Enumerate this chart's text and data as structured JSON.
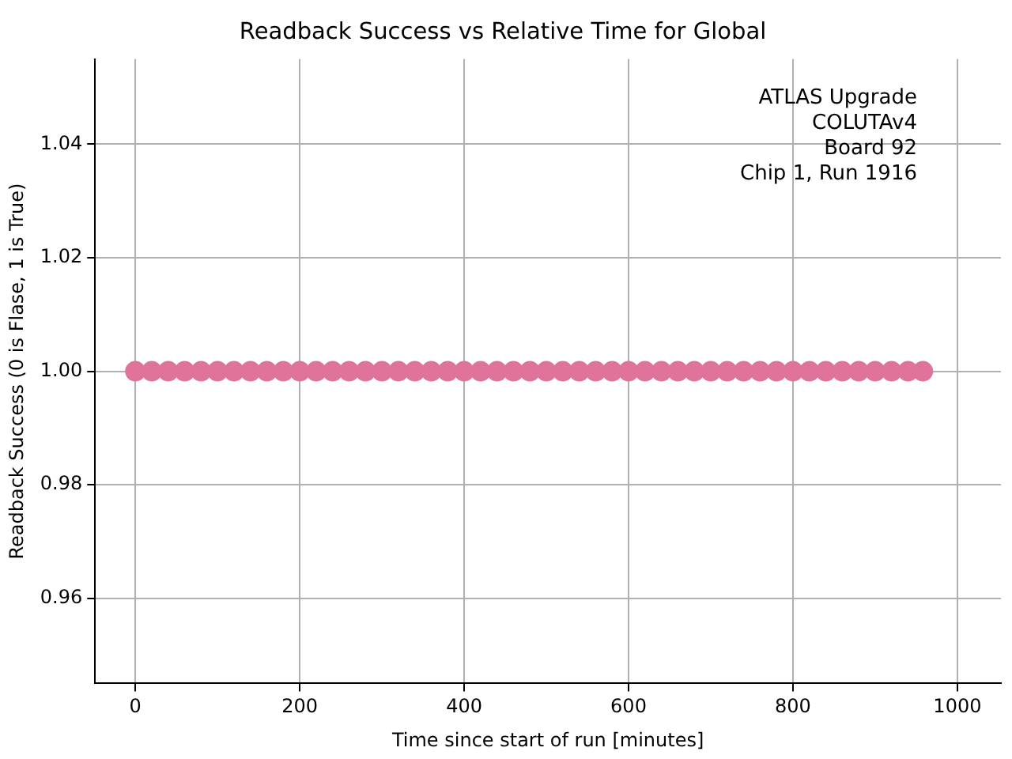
{
  "chart_data": {
    "type": "scatter",
    "title": "Readback Success vs Relative Time for Global",
    "xlabel": "Time since start of run [minutes]",
    "ylabel": "Readback Success (0 is Flase, 1 is True)",
    "annotations": [
      "ATLAS Upgrade\nCOLUTAv4\nBoard 92\nChip 1, Run 1916"
    ],
    "x": [
      0,
      20,
      40,
      60,
      80,
      100,
      120,
      140,
      160,
      180,
      200,
      220,
      240,
      260,
      280,
      300,
      320,
      340,
      360,
      380,
      400,
      420,
      440,
      460,
      480,
      500,
      520,
      540,
      560,
      580,
      600,
      620,
      640,
      660,
      680,
      700,
      720,
      740,
      760,
      780,
      800,
      820,
      840,
      860,
      880,
      900,
      920,
      940,
      958
    ],
    "series": [
      {
        "color": "#e07399",
        "values": [
          1,
          1,
          1,
          1,
          1,
          1,
          1,
          1,
          1,
          1,
          1,
          1,
          1,
          1,
          1,
          1,
          1,
          1,
          1,
          1,
          1,
          1,
          1,
          1,
          1,
          1,
          1,
          1,
          1,
          1,
          1,
          1,
          1,
          1,
          1,
          1,
          1,
          1,
          1,
          1,
          1,
          1,
          1,
          1,
          1,
          1,
          1,
          1,
          1
        ]
      }
    ],
    "xlim": [
      -49,
      1053
    ],
    "xticks": [
      0,
      200,
      400,
      600,
      800,
      1000
    ],
    "ylim": [
      0.945,
      1.055
    ],
    "yticks": [
      0.96,
      0.98,
      {
        "value": 1,
        "label": "1.00"
      },
      1.02,
      1.04
    ],
    "grid": true,
    "marker": "circle"
  }
}
